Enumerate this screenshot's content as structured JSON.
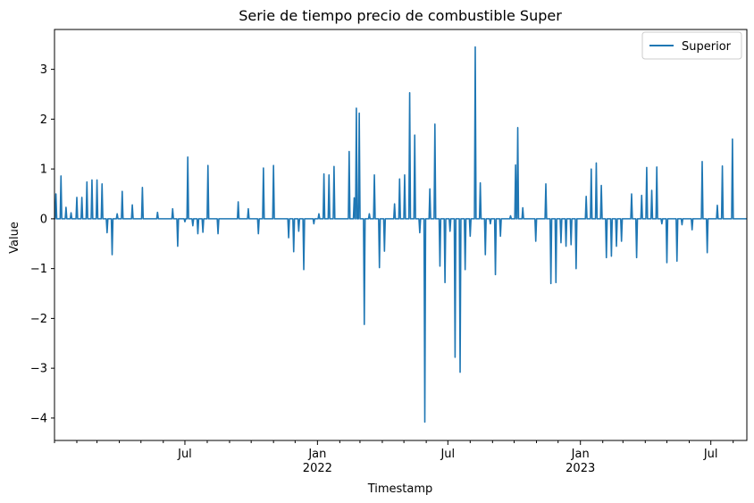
{
  "chart_data": {
    "type": "line",
    "title": "Serie de tiempo precio de combustible Super",
    "xlabel": "Timestamp",
    "ylabel": "Value",
    "xlim": [
      "2021-01-01",
      "2023-08-20"
    ],
    "ylim": [
      -4.45,
      3.8
    ],
    "grid": false,
    "legend_position": "top-right",
    "y_ticks": [
      -4,
      -3,
      -2,
      -1,
      0,
      1,
      2,
      3
    ],
    "y_tick_labels": [
      "−4",
      "−3",
      "−2",
      "−1",
      "0",
      "1",
      "2",
      "3"
    ],
    "x_major_ticks": [
      {
        "date": "2021-07-01",
        "label": "Jul",
        "sublabel": ""
      },
      {
        "date": "2022-01-01",
        "label": "Jan",
        "sublabel": "2022"
      },
      {
        "date": "2022-07-01",
        "label": "Jul",
        "sublabel": ""
      },
      {
        "date": "2023-01-01",
        "label": "Jan",
        "sublabel": "2023"
      },
      {
        "date": "2023-07-01",
        "label": "Jul",
        "sublabel": ""
      }
    ],
    "x_minor_ticks": [
      "2021-01-01",
      "2021-02-01",
      "2021-03-01",
      "2021-04-01",
      "2021-05-01",
      "2021-06-01",
      "2021-08-01",
      "2021-09-01",
      "2021-10-01",
      "2021-11-01",
      "2021-12-01",
      "2022-02-01",
      "2022-03-01",
      "2022-04-01",
      "2022-05-01",
      "2022-06-01",
      "2022-08-01",
      "2022-09-01",
      "2022-10-01",
      "2022-11-01",
      "2022-12-01",
      "2023-02-01",
      "2023-03-01",
      "2023-04-01",
      "2023-05-01",
      "2023-06-01",
      "2023-08-01"
    ],
    "color": "#1f77b4",
    "series": [
      {
        "name": "Superior",
        "points": [
          [
            "2021-01-03",
            0.5
          ],
          [
            "2021-01-10",
            0.86
          ],
          [
            "2021-01-17",
            0.23
          ],
          [
            "2021-01-24",
            0.12
          ],
          [
            "2021-02-01",
            0.43
          ],
          [
            "2021-02-08",
            0.43
          ],
          [
            "2021-02-15",
            0.74
          ],
          [
            "2021-02-22",
            0.78
          ],
          [
            "2021-03-01",
            0.78
          ],
          [
            "2021-03-08",
            0.7
          ],
          [
            "2021-03-15",
            -0.28
          ],
          [
            "2021-03-22",
            -0.72
          ],
          [
            "2021-03-29",
            0.1
          ],
          [
            "2021-04-05",
            0.55
          ],
          [
            "2021-04-19",
            0.28
          ],
          [
            "2021-05-03",
            0.63
          ],
          [
            "2021-05-24",
            0.13
          ],
          [
            "2021-06-14",
            0.2
          ],
          [
            "2021-06-21",
            -0.55
          ],
          [
            "2021-07-01",
            -0.06
          ],
          [
            "2021-07-05",
            1.24
          ],
          [
            "2021-07-12",
            -0.14
          ],
          [
            "2021-07-19",
            -0.3
          ],
          [
            "2021-07-26",
            -0.27
          ],
          [
            "2021-08-02",
            1.07
          ],
          [
            "2021-08-16",
            -0.3
          ],
          [
            "2021-09-13",
            0.34
          ],
          [
            "2021-09-27",
            0.2
          ],
          [
            "2021-10-11",
            -0.3
          ],
          [
            "2021-10-18",
            1.02
          ],
          [
            "2021-11-01",
            1.07
          ],
          [
            "2021-11-22",
            -0.38
          ],
          [
            "2021-11-29",
            -0.66
          ],
          [
            "2021-12-06",
            -0.25
          ],
          [
            "2021-12-13",
            -1.02
          ],
          [
            "2021-12-27",
            -0.1
          ],
          [
            "2022-01-03",
            0.1
          ],
          [
            "2022-01-10",
            0.9
          ],
          [
            "2022-01-17",
            0.88
          ],
          [
            "2022-01-24",
            1.05
          ],
          [
            "2022-02-14",
            1.35
          ],
          [
            "2022-02-21",
            0.42
          ],
          [
            "2022-02-24",
            2.22
          ],
          [
            "2022-02-28",
            2.12
          ],
          [
            "2022-03-07",
            -2.12
          ],
          [
            "2022-03-14",
            0.1
          ],
          [
            "2022-03-21",
            0.88
          ],
          [
            "2022-03-28",
            -0.98
          ],
          [
            "2022-04-04",
            -0.65
          ],
          [
            "2022-04-18",
            0.3
          ],
          [
            "2022-04-25",
            0.8
          ],
          [
            "2022-05-02",
            0.88
          ],
          [
            "2022-05-09",
            2.53
          ],
          [
            "2022-05-16",
            1.68
          ],
          [
            "2022-05-23",
            -0.28
          ],
          [
            "2022-05-30",
            -4.08
          ],
          [
            "2022-06-06",
            0.6
          ],
          [
            "2022-06-13",
            1.9
          ],
          [
            "2022-06-20",
            -0.95
          ],
          [
            "2022-06-27",
            -1.28
          ],
          [
            "2022-07-04",
            -0.25
          ],
          [
            "2022-07-11",
            -2.78
          ],
          [
            "2022-07-18",
            -3.08
          ],
          [
            "2022-07-25",
            -1.02
          ],
          [
            "2022-08-01",
            -0.35
          ],
          [
            "2022-08-08",
            3.45
          ],
          [
            "2022-08-15",
            0.72
          ],
          [
            "2022-08-22",
            -0.72
          ],
          [
            "2022-08-29",
            -0.1
          ],
          [
            "2022-09-05",
            -1.12
          ],
          [
            "2022-09-12",
            -0.35
          ],
          [
            "2022-09-26",
            0.06
          ],
          [
            "2022-10-03",
            1.08
          ],
          [
            "2022-10-06",
            1.83
          ],
          [
            "2022-10-13",
            0.22
          ],
          [
            "2022-10-31",
            -0.45
          ],
          [
            "2022-11-14",
            0.7
          ],
          [
            "2022-11-21",
            -1.3
          ],
          [
            "2022-11-28",
            -1.28
          ],
          [
            "2022-12-05",
            -0.48
          ],
          [
            "2022-12-12",
            -0.55
          ],
          [
            "2022-12-19",
            -0.52
          ],
          [
            "2022-12-26",
            -1.0
          ],
          [
            "2023-01-09",
            0.45
          ],
          [
            "2023-01-16",
            1.0
          ],
          [
            "2023-01-23",
            1.12
          ],
          [
            "2023-01-30",
            0.67
          ],
          [
            "2023-02-06",
            -0.78
          ],
          [
            "2023-02-13",
            -0.75
          ],
          [
            "2023-02-20",
            -0.55
          ],
          [
            "2023-02-27",
            -0.45
          ],
          [
            "2023-03-13",
            0.5
          ],
          [
            "2023-03-20",
            -0.78
          ],
          [
            "2023-03-27",
            0.47
          ],
          [
            "2023-04-03",
            1.03
          ],
          [
            "2023-04-10",
            0.57
          ],
          [
            "2023-04-17",
            1.04
          ],
          [
            "2023-04-24",
            -0.1
          ],
          [
            "2023-05-01",
            -0.88
          ],
          [
            "2023-05-08",
            0.0
          ],
          [
            "2023-05-15",
            -0.85
          ],
          [
            "2023-05-22",
            -0.12
          ],
          [
            "2023-06-05",
            -0.22
          ],
          [
            "2023-06-19",
            1.15
          ],
          [
            "2023-06-26",
            -0.68
          ],
          [
            "2023-07-10",
            0.27
          ],
          [
            "2023-07-17",
            1.06
          ],
          [
            "2023-07-31",
            1.6
          ]
        ]
      }
    ]
  }
}
